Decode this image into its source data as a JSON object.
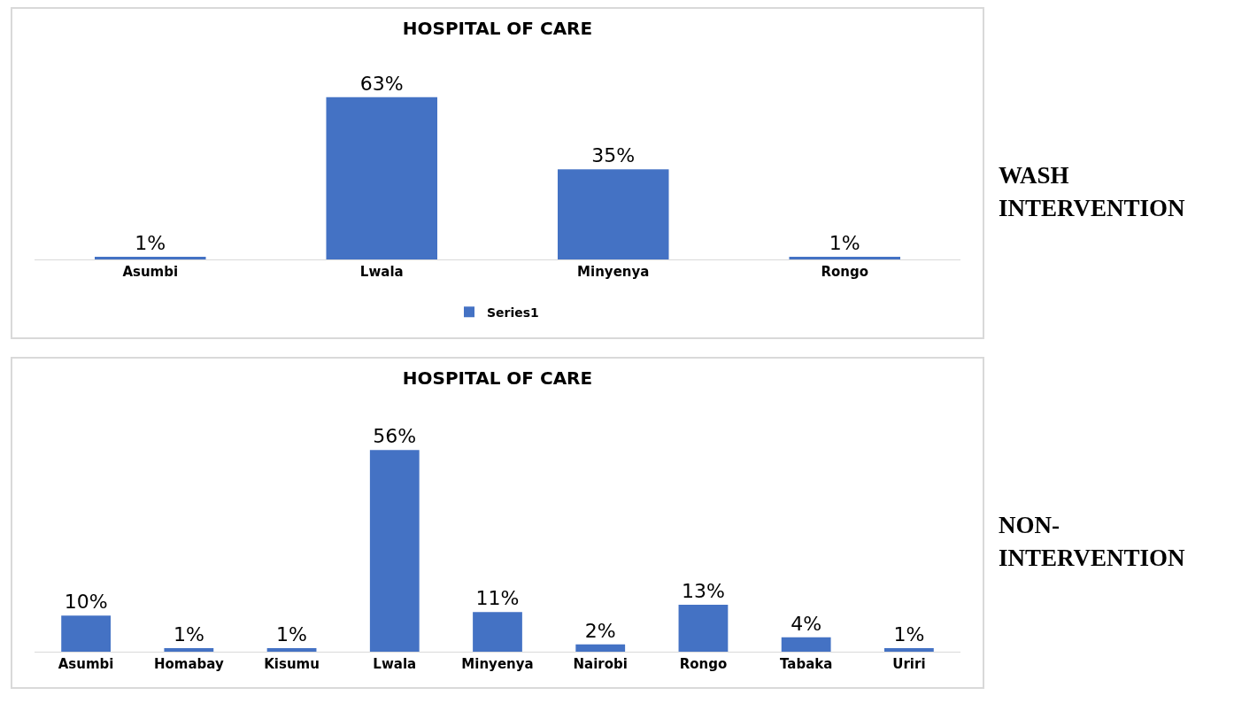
{
  "chart_data": [
    {
      "type": "bar",
      "title": "HOSPITAL OF CARE",
      "categories": [
        "Asumbi",
        "Lwala",
        "Minyenya",
        "Rongo"
      ],
      "series": [
        {
          "name": "Series1",
          "color": "#4472c4",
          "values": [
            1,
            63,
            35,
            1
          ],
          "value_labels": [
            "1%",
            "63%",
            "35%",
            "1%"
          ]
        }
      ],
      "legend": "bottom",
      "grid": false,
      "annotations": [
        "WASH INTERVENTION"
      ]
    },
    {
      "type": "bar",
      "title": "HOSPITAL OF CARE",
      "categories": [
        "Asumbi",
        "Homabay",
        "Kisumu",
        "Lwala",
        "Minyenya",
        "Nairobi",
        "Rongo",
        "Tabaka",
        "Uriri"
      ],
      "series": [
        {
          "color": "#4472c4",
          "values": [
            10,
            1,
            1,
            56,
            11,
            2,
            13,
            4,
            1
          ],
          "value_labels": [
            "10%",
            "1%",
            "1%",
            "56%",
            "11%",
            "2%",
            "13%",
            "4%",
            "1%"
          ]
        }
      ],
      "grid": false,
      "annotations": [
        "NON-INTERVENTION"
      ]
    }
  ]
}
